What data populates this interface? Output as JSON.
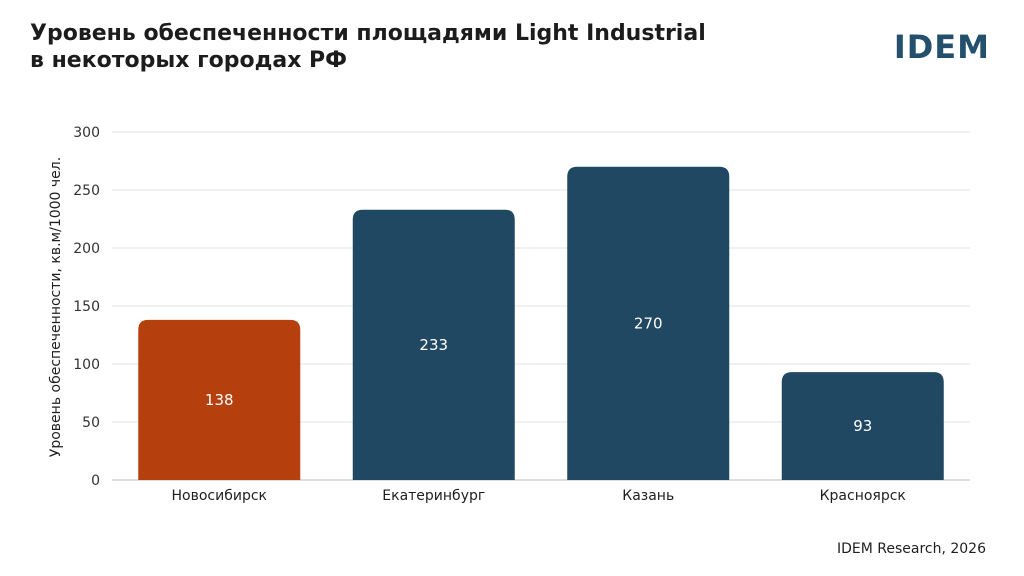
{
  "header": {
    "title_line1": "Уровень обеспеченности площадями Light Industrial",
    "title_line2": "в некоторых городах РФ",
    "logo": "IDEM"
  },
  "footer": {
    "source": "IDEM Research, 2026"
  },
  "colors": {
    "highlight": "#b5400e",
    "bar": "#214862",
    "grid": "#e3e3e3"
  },
  "chart_data": {
    "type": "bar",
    "title": "Уровень обеспеченности площадями Light Industrial в некоторых городах РФ",
    "ylabel": "Уровень обеспеченности, кв.м/1000 чел.",
    "xlabel": "",
    "categories": [
      "Новосибирск",
      "Екатеринбург",
      "Казань",
      "Красноярск"
    ],
    "values": [
      138,
      233,
      270,
      93
    ],
    "data_labels": [
      "138",
      "233",
      "270",
      "93"
    ],
    "highlighted_category": "Новосибирск",
    "ylim": [
      0,
      300
    ],
    "yticks": [
      0,
      50,
      100,
      150,
      200,
      250,
      300
    ],
    "grid": true,
    "legend": "none"
  }
}
